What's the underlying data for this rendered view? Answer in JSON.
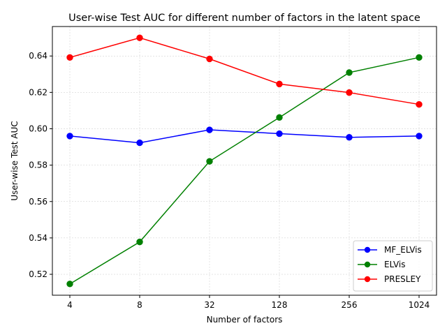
{
  "chart_data": {
    "type": "line",
    "title": "User-wise Test AUC for different number of factors in the latent space",
    "xlabel": "Number of factors",
    "ylabel": "User-wise Test AUC",
    "categories": [
      "4",
      "8",
      "32",
      "128",
      "256",
      "1024"
    ],
    "ylim": [
      0.5085,
      0.6562
    ],
    "yticks": [
      0.52,
      0.54,
      0.56,
      0.58,
      0.6,
      0.62,
      0.64
    ],
    "ytick_labels": [
      "0.52",
      "0.54",
      "0.56",
      "0.58",
      "0.60",
      "0.62",
      "0.64"
    ],
    "grid": true,
    "legend_position": "lower-right",
    "marker": "circle",
    "series": [
      {
        "name": "MF_ELVis",
        "color": "#0000ff",
        "values": [
          0.596,
          0.5923,
          0.5994,
          0.5973,
          0.5953,
          0.596
        ]
      },
      {
        "name": "ELVis",
        "color": "#008000",
        "values": [
          0.5147,
          0.5378,
          0.5821,
          0.6062,
          0.6309,
          0.6392
        ]
      },
      {
        "name": "PRESLEY",
        "color": "#ff0000",
        "values": [
          0.6392,
          0.65,
          0.6384,
          0.6246,
          0.6199,
          0.6134
        ]
      }
    ]
  }
}
